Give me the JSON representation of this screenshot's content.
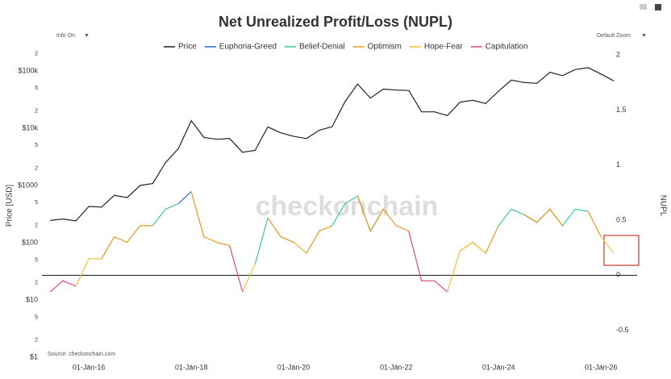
{
  "chart_data": {
    "type": "line",
    "title": "Net Unrealized Profit/Loss (NUPL)",
    "controls": {
      "left": "Info On",
      "right": "Default Zoom"
    },
    "watermark": "checkonchain",
    "source": "Source: checkonchain.com",
    "ylabel": "Price [USD]",
    "y2label": "NUPL",
    "log_y": true,
    "grid": false,
    "legend": "top",
    "x": [
      "2015-04-01",
      "2015-07-01",
      "2015-10-01",
      "2016-01-01",
      "2016-04-01",
      "2016-07-01",
      "2016-10-01",
      "2017-01-01",
      "2017-04-01",
      "2017-07-01",
      "2017-10-01",
      "2018-01-01",
      "2018-04-01",
      "2018-07-01",
      "2018-10-01",
      "2019-01-01",
      "2019-04-01",
      "2019-07-01",
      "2019-10-01",
      "2020-01-01",
      "2020-04-01",
      "2020-07-01",
      "2020-10-01",
      "2021-01-01",
      "2021-04-01",
      "2021-07-01",
      "2021-10-01",
      "2022-01-01",
      "2022-04-01",
      "2022-07-01",
      "2022-10-01",
      "2023-01-01",
      "2023-04-01",
      "2023-07-01",
      "2023-10-01",
      "2024-01-01",
      "2024-04-01",
      "2024-07-01",
      "2024-10-01",
      "2025-01-01",
      "2025-04-01",
      "2025-07-01",
      "2025-10-01",
      "2026-01-01",
      "2026-04-01"
    ],
    "xlim": [
      "2015-02-01",
      "2026-09-15"
    ],
    "xticks": [
      {
        "value": "2016-01-01",
        "label": "01-Jan-16"
      },
      {
        "value": "2018-01-01",
        "label": "01-Jan-18"
      },
      {
        "value": "2020-01-01",
        "label": "01-Jan-20"
      },
      {
        "value": "2022-01-01",
        "label": "01-Jan-22"
      },
      {
        "value": "2024-01-01",
        "label": "01-Jan-24"
      },
      {
        "value": "2026-01-01",
        "label": "01-Jan-26"
      }
    ],
    "ylim": [
      0.75,
      247000
    ],
    "yticks": [
      {
        "value": 1,
        "label": "$1"
      },
      2,
      5,
      {
        "value": 10,
        "label": "$10"
      },
      {
        "value": 20,
        "label": "2"
      },
      {
        "value": 50,
        "label": "5"
      },
      {
        "value": 100,
        "label": "$100"
      },
      {
        "value": 200,
        "label": "2"
      },
      {
        "value": 500,
        "label": "5"
      },
      {
        "value": 1000,
        "label": "$1000"
      },
      {
        "value": 2000,
        "label": "2"
      },
      {
        "value": 5000,
        "label": "5"
      },
      {
        "value": 10000,
        "label": "$10k"
      },
      {
        "value": 20000,
        "label": "2"
      },
      {
        "value": 50000,
        "label": "5"
      },
      {
        "value": 100000,
        "label": "$100k"
      },
      {
        "value": 200000,
        "label": "2"
      }
    ],
    "y2lim": [
      -0.81,
      2.06
    ],
    "y2ticks": [
      2,
      1.5,
      1,
      0.5,
      0,
      -0.5
    ],
    "series": [
      {
        "name": "Price",
        "color": "#222222",
        "values": [
          245,
          260,
          240,
          430,
          420,
          670,
          615,
          1000,
          1080,
          2500,
          4400,
          13500,
          6900,
          6400,
          6600,
          3800,
          4100,
          10500,
          8300,
          7200,
          6600,
          9200,
          10600,
          29000,
          59000,
          33500,
          48000,
          46300,
          45500,
          19300,
          19300,
          16600,
          28400,
          30600,
          27000,
          44200,
          69000,
          62700,
          60800,
          94400,
          82500,
          105700,
          114000,
          88000,
          67000
        ]
      },
      {
        "name": "Euphoria-Greed",
        "color": "#1f6fd0",
        "axis": "y2",
        "values": [
          null,
          null,
          null,
          null,
          null,
          null,
          null,
          null,
          null,
          null,
          0.65,
          0.76,
          null,
          null,
          null,
          null,
          null,
          null,
          null,
          null,
          null,
          null,
          null,
          null,
          null,
          null,
          null,
          null,
          null,
          null,
          null,
          null,
          null,
          null,
          null,
          null,
          null,
          null,
          null,
          null,
          null,
          null,
          null,
          null,
          null
        ]
      },
      {
        "name": "Belief-Denial",
        "color": "#3ec99a",
        "axis": "y2",
        "values": [
          null,
          null,
          null,
          null,
          null,
          null,
          null,
          null,
          0.45,
          0.6,
          0.65,
          null,
          null,
          null,
          null,
          null,
          0.1,
          0.52,
          null,
          null,
          null,
          null,
          0.45,
          0.65,
          0.72,
          0.4,
          0.6,
          null,
          null,
          null,
          null,
          null,
          null,
          null,
          null,
          0.45,
          0.6,
          0.55,
          0.48,
          0.6,
          0.45,
          0.6,
          0.58,
          null,
          null
        ]
      },
      {
        "name": "Optimism",
        "color": "#e39a1e",
        "axis": "y2",
        "values": [
          null,
          null,
          null,
          null,
          0.15,
          0.35,
          0.3,
          0.45,
          0.45,
          null,
          null,
          0.76,
          0.35,
          0.3,
          0.27,
          null,
          null,
          0.52,
          0.35,
          0.3,
          0.2,
          0.4,
          0.45,
          null,
          0.72,
          0.4,
          0.6,
          0.45,
          0.4,
          null,
          null,
          null,
          0.22,
          0.3,
          0.2,
          0.45,
          null,
          0.55,
          0.48,
          0.6,
          0.45,
          null,
          0.58,
          0.35,
          null
        ]
      },
      {
        "name": "Hope-Fear",
        "color": "#f0c040",
        "axis": "y2",
        "values": [
          null,
          null,
          -0.1,
          0.15,
          0.15,
          null,
          null,
          null,
          null,
          null,
          null,
          null,
          null,
          null,
          null,
          -0.15,
          0.1,
          null,
          null,
          0.3,
          0.2,
          null,
          null,
          null,
          null,
          null,
          null,
          null,
          null,
          null,
          null,
          -0.15,
          0.22,
          0.3,
          0.2,
          null,
          null,
          null,
          null,
          null,
          null,
          null,
          null,
          0.35,
          0.2
        ]
      },
      {
        "name": "Capitulation",
        "color": "#e0457b",
        "axis": "y2",
        "values": [
          -0.15,
          -0.05,
          -0.1,
          null,
          null,
          null,
          null,
          null,
          null,
          null,
          null,
          null,
          null,
          null,
          0.27,
          -0.15,
          null,
          null,
          null,
          null,
          null,
          null,
          null,
          null,
          null,
          null,
          null,
          null,
          0.4,
          -0.05,
          -0.05,
          -0.15,
          null,
          null,
          null,
          null,
          null,
          null,
          null,
          null,
          null,
          null,
          null,
          null,
          null
        ]
      }
    ]
  }
}
